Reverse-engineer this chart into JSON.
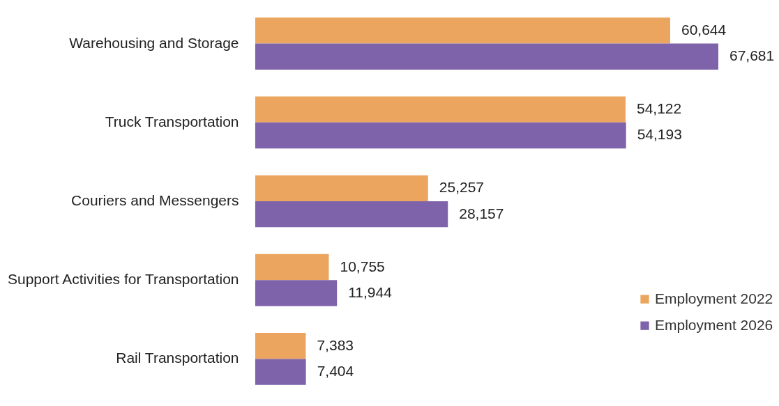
{
  "chart_data": {
    "type": "bar",
    "orientation": "horizontal",
    "categories": [
      "Warehousing and Storage",
      "Truck Transportation",
      "Couriers and Messengers",
      "Support Activities for Transportation",
      "Rail Transportation"
    ],
    "series": [
      {
        "name": "Employment 2022",
        "color": "#eba55f",
        "values": [
          60644,
          54122,
          25257,
          10755,
          7383
        ],
        "value_labels": [
          "60,644",
          "54,122",
          "25,257",
          "10,755",
          "7,383"
        ]
      },
      {
        "name": "Employment 2026",
        "color": "#7e63aa",
        "values": [
          67681,
          54193,
          28157,
          11944,
          7404
        ],
        "value_labels": [
          "67,681",
          "54,193",
          "28,157",
          "11,944",
          "7,404"
        ]
      }
    ],
    "tick_labels": "y",
    "grid": false,
    "legend": "bottom right"
  }
}
